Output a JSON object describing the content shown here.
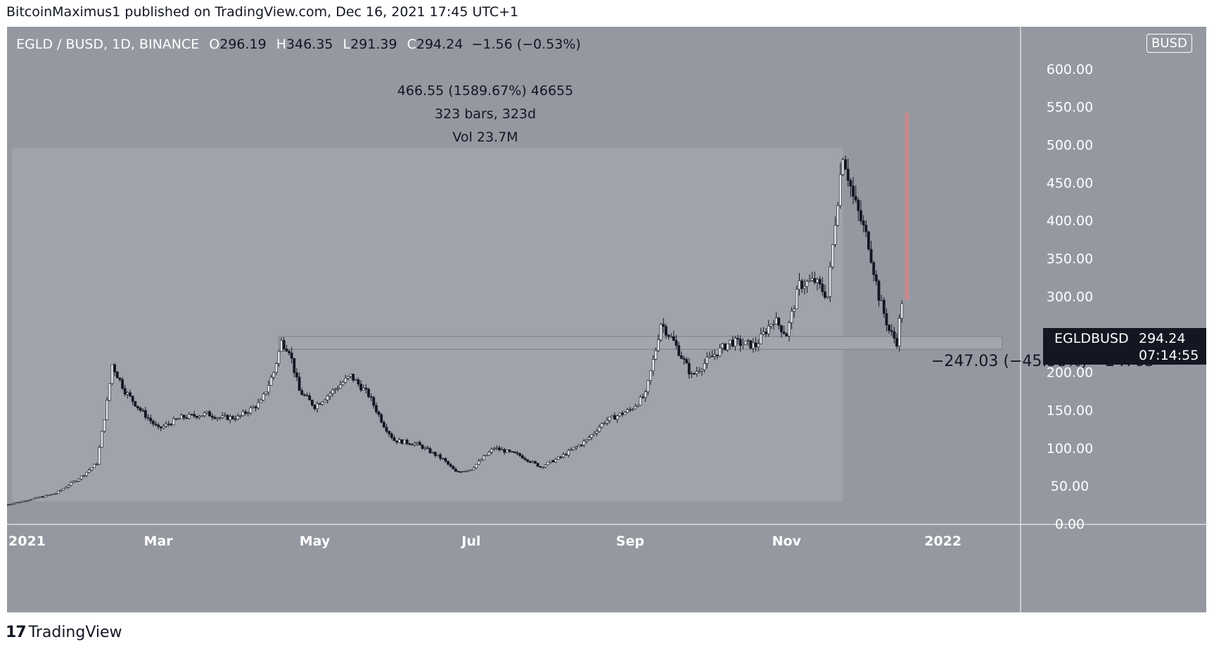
{
  "header": {
    "publish_line": "BitcoinMaximus1 published on TradingView.com, Dec 16, 2021 17:45 UTC+1"
  },
  "legend": {
    "symbol_line": "EGLD / BUSD, 1D, BINANCE",
    "open_key": "O",
    "open": "296.19",
    "high_key": "H",
    "high": "346.35",
    "low_key": "L",
    "low": "291.39",
    "close_key": "C",
    "close": "294.24",
    "change": "−1.56 (−0.53%)"
  },
  "currency_badge": "BUSD",
  "measurement": {
    "line1": "466.55 (1589.67%) 46655",
    "line2": "323 bars, 323d",
    "line3": "Vol 23.7M"
  },
  "drop_measurement": {
    "label": "−247.03 (−45.58%) −24703"
  },
  "price_tag": {
    "symbol": "EGLDBUSD",
    "price": "294.24",
    "countdown": "07:14:55"
  },
  "footer": {
    "logo_mark": "17",
    "logo_text": "TradingView"
  },
  "colors": {
    "background": "#9598a1",
    "measure_box": "#a0a3ab",
    "support_band": "#a3a6ae",
    "drop_bar": "#c98a8e",
    "candle": "#131722",
    "axis_text": "#ffffff"
  },
  "chart_data": {
    "type": "candlestick",
    "title": "EGLD / BUSD, 1D, BINANCE",
    "ylim": [
      0,
      650
    ],
    "y_ticks": [
      "0.00",
      "50.00",
      "100.00",
      "150.00",
      "200.00",
      "250.00",
      "300.00",
      "350.00",
      "400.00",
      "450.00",
      "500.00",
      "550.00",
      "600.00"
    ],
    "x_ticks": [
      {
        "label": "2021",
        "date": "2021-01-01"
      },
      {
        "label": "Mar",
        "date": "2021-03-01"
      },
      {
        "label": "May",
        "date": "2021-05-01"
      },
      {
        "label": "Jul",
        "date": "2021-07-01"
      },
      {
        "label": "Sep",
        "date": "2021-09-01"
      },
      {
        "label": "Nov",
        "date": "2021-11-01"
      },
      {
        "label": "2022",
        "date": "2022-01-01"
      }
    ],
    "x_range": [
      "2021-01-01",
      "2022-01-31"
    ],
    "price_path": [
      [
        "2021-01-01",
        25
      ],
      [
        "2021-01-10",
        32
      ],
      [
        "2021-01-20",
        40
      ],
      [
        "2021-01-30",
        62
      ],
      [
        "2021-02-05",
        80
      ],
      [
        "2021-02-09",
        160
      ],
      [
        "2021-02-11",
        210
      ],
      [
        "2021-02-16",
        175
      ],
      [
        "2021-02-22",
        150
      ],
      [
        "2021-03-01",
        125
      ],
      [
        "2021-03-10",
        140
      ],
      [
        "2021-03-20",
        145
      ],
      [
        "2021-03-25",
        140
      ],
      [
        "2021-04-01",
        140
      ],
      [
        "2021-04-10",
        160
      ],
      [
        "2021-04-15",
        200
      ],
      [
        "2021-04-18",
        240
      ],
      [
        "2021-04-21",
        230
      ],
      [
        "2021-04-25",
        175
      ],
      [
        "2021-05-01",
        155
      ],
      [
        "2021-05-08",
        175
      ],
      [
        "2021-05-15",
        195
      ],
      [
        "2021-05-22",
        170
      ],
      [
        "2021-05-28",
        130
      ],
      [
        "2021-06-01",
        110
      ],
      [
        "2021-06-10",
        105
      ],
      [
        "2021-06-20",
        85
      ],
      [
        "2021-06-25",
        68
      ],
      [
        "2021-07-01",
        72
      ],
      [
        "2021-07-10",
        100
      ],
      [
        "2021-07-20",
        90
      ],
      [
        "2021-07-28",
        75
      ],
      [
        "2021-08-05",
        88
      ],
      [
        "2021-08-15",
        110
      ],
      [
        "2021-08-22",
        135
      ],
      [
        "2021-09-01",
        150
      ],
      [
        "2021-09-07",
        170
      ],
      [
        "2021-09-11",
        230
      ],
      [
        "2021-09-13",
        265
      ],
      [
        "2021-09-18",
        240
      ],
      [
        "2021-09-25",
        195
      ],
      [
        "2021-10-01",
        215
      ],
      [
        "2021-10-10",
        240
      ],
      [
        "2021-10-20",
        235
      ],
      [
        "2021-10-27",
        270
      ],
      [
        "2021-11-01",
        250
      ],
      [
        "2021-11-06",
        315
      ],
      [
        "2021-11-12",
        320
      ],
      [
        "2021-11-17",
        300
      ],
      [
        "2021-11-20",
        400
      ],
      [
        "2021-11-23",
        490
      ],
      [
        "2021-11-27",
        430
      ],
      [
        "2021-12-03",
        370
      ],
      [
        "2021-12-07",
        300
      ],
      [
        "2021-12-11",
        255
      ],
      [
        "2021-12-14",
        240
      ],
      [
        "2021-12-16",
        294
      ]
    ],
    "measure_range": {
      "start": "2021-01-03",
      "end": "2021-11-23",
      "low": 29.35,
      "high": 495.9,
      "change": 466.55
    },
    "support_zone": {
      "start": "2021-04-17",
      "end": "2022-01-24",
      "low": 230,
      "high": 247
    },
    "drop_range": {
      "date": "2021-12-18",
      "from": 542,
      "to": 295
    },
    "last_price": 294.24
  }
}
